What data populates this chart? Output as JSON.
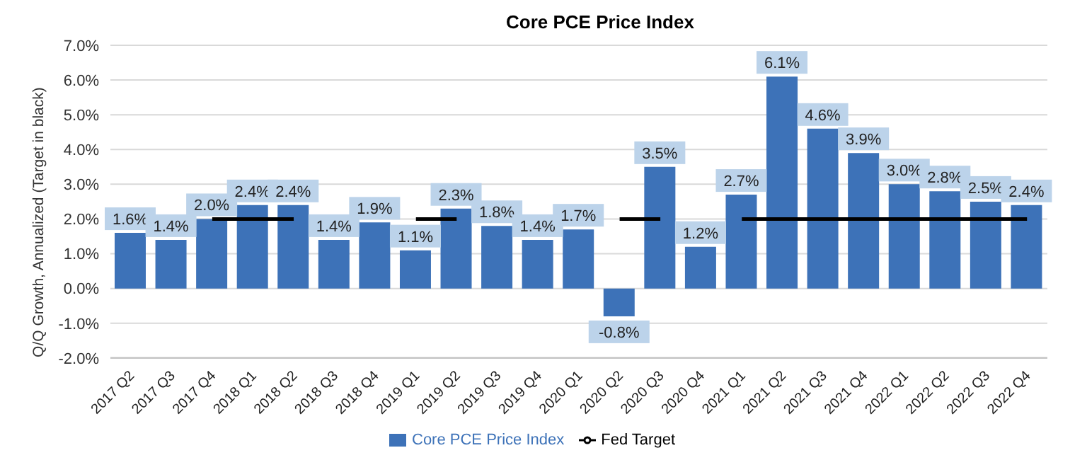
{
  "chart_data": {
    "type": "bar",
    "title": "Core PCE Price Index",
    "ylabel": "Q/Q Growth, Annualized (Target in black)",
    "categories": [
      "2017 Q2",
      "2017 Q3",
      "2017 Q4",
      "2018 Q1",
      "2018 Q2",
      "2018 Q3",
      "2018 Q4",
      "2019 Q1",
      "2019 Q2",
      "2019 Q3",
      "2019 Q4",
      "2020 Q1",
      "2020 Q2",
      "2020 Q3",
      "2020 Q4",
      "2021 Q1",
      "2021 Q2",
      "2021 Q3",
      "2021 Q4",
      "2022 Q1",
      "2022 Q2",
      "2022 Q3",
      "2022 Q4"
    ],
    "series": [
      {
        "name": "Core PCE Price Index",
        "color": "#3d72b8",
        "values": [
          1.6,
          1.4,
          2.0,
          2.4,
          2.4,
          1.4,
          1.9,
          1.1,
          2.3,
          1.8,
          1.4,
          1.7,
          -0.8,
          3.5,
          1.2,
          2.7,
          6.1,
          4.6,
          3.9,
          3.0,
          2.8,
          2.5,
          2.4
        ],
        "value_labels": [
          "1.6%",
          "1.4%",
          "2.0%",
          "2.4%",
          "2.4%",
          "1.4%",
          "1.9%",
          "1.1%",
          "2.3%",
          "1.8%",
          "1.4%",
          "1.7%",
          "-0.8%",
          "3.5%",
          "1.2%",
          "2.7%",
          "6.1%",
          "4.6%",
          "3.9%",
          "3.0%",
          "2.8%",
          "2.5%",
          "2.4%"
        ]
      },
      {
        "name": "Fed Target",
        "type": "line",
        "color": "#000000",
        "values": [
          null,
          null,
          2.0,
          2.0,
          2.0,
          null,
          null,
          2.0,
          2.0,
          null,
          null,
          null,
          2.0,
          2.0,
          null,
          2.0,
          2.0,
          2.0,
          2.0,
          2.0,
          2.0,
          2.0,
          2.0
        ]
      }
    ],
    "ylim": [
      -2,
      7
    ],
    "yticks": [
      {
        "value": -2,
        "label": "-2.0%"
      },
      {
        "value": -1,
        "label": "-1.0%"
      },
      {
        "value": 0,
        "label": "0.0%"
      },
      {
        "value": 1,
        "label": "1.0%"
      },
      {
        "value": 2,
        "label": "2.0%"
      },
      {
        "value": 3,
        "label": "3.0%"
      },
      {
        "value": 4,
        "label": "4.0%"
      },
      {
        "value": 5,
        "label": "5.0%"
      },
      {
        "value": 6,
        "label": "6.0%"
      },
      {
        "value": 7,
        "label": "7.0%"
      }
    ],
    "grid": "y",
    "legend": "bottom",
    "marker": "none",
    "line_style": "solid"
  }
}
